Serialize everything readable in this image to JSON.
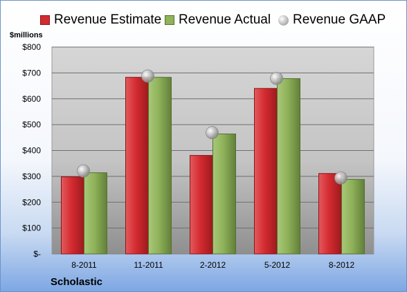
{
  "chart_data": {
    "type": "bar",
    "title": "",
    "ylabel": "$millions",
    "xlabel": "",
    "company": "Scholastic",
    "categories": [
      "8-2011",
      "11-2011",
      "2-2012",
      "5-2012",
      "8-2012"
    ],
    "y_ticks": [
      "$-",
      "$100",
      "$200",
      "$300",
      "$400",
      "$500",
      "$600",
      "$700",
      "$800"
    ],
    "ylim": [
      0,
      800
    ],
    "grid": true,
    "legend_position": "top",
    "series": [
      {
        "name": "Revenue Estimate",
        "kind": "bar",
        "color": "#d42b30",
        "values": [
          298,
          683,
          381,
          640,
          311
        ]
      },
      {
        "name": "Revenue Actual",
        "kind": "bar",
        "color": "#8fb25a",
        "values": [
          314,
          683,
          464,
          678,
          288
        ]
      },
      {
        "name": "Revenue GAAP",
        "kind": "point",
        "color": "#b0b0b0",
        "values": [
          321,
          688,
          469,
          679,
          294
        ]
      }
    ]
  }
}
